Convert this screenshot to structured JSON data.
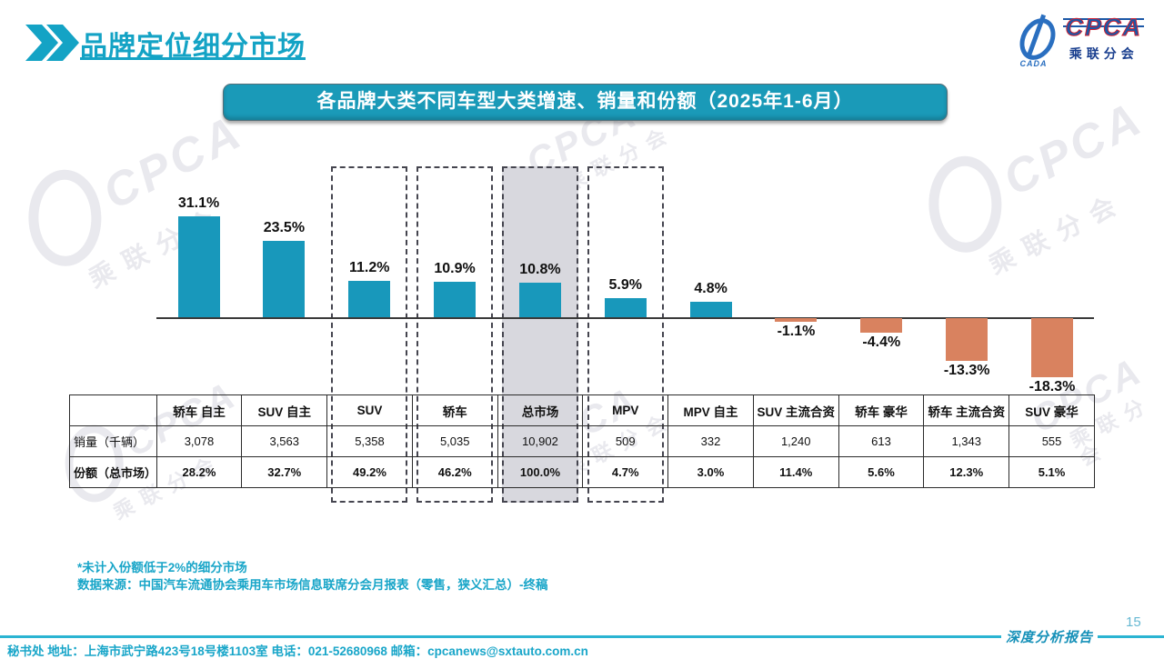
{
  "page": {
    "title": "品牌定位细分市场",
    "page_number": "15",
    "report_label": "深度分析报告",
    "footer_contact": "秘书处  地址：上海市武宁路423号18号楼1103室 电话：021-52680968   邮箱：cpcanews@sxtauto.com.cn"
  },
  "logo": {
    "cpca": "CPCA",
    "zh": "乘联分会",
    "cada": "CADA"
  },
  "banner": {
    "title": "各品牌大类不同车型大类增速、销量和份额（2025年1-6月）"
  },
  "notes": {
    "line1": "*未计入份额低于2%的细分市场",
    "line2": "数据来源：中国汽车流通协会乘用车市场信息联席分会月报表（零售，狭义汇总）-终稿"
  },
  "watermark": {
    "text": "CPCA",
    "sub": "乘联分会"
  },
  "chart_data": {
    "type": "bar",
    "title": "各品牌大类不同车型大类增速、销量和份额（2025年1-6月）",
    "categories": [
      "轿车 自主",
      "SUV 自主",
      "SUV",
      "轿车",
      "总市场",
      "MPV",
      "MPV 自主",
      "SUV 主流合资",
      "轿车 豪华",
      "轿车 主流合资",
      "SUV 豪华"
    ],
    "growth_pct": [
      31.1,
      23.5,
      11.2,
      10.9,
      10.8,
      5.9,
      4.8,
      -1.1,
      -4.4,
      -13.3,
      -18.3
    ],
    "row_labels": [
      "销量（千辆）",
      "份额（总市场）"
    ],
    "sales_thousand": [
      "3,078",
      "3,563",
      "5,358",
      "5,035",
      "10,902",
      "509",
      "332",
      "1,240",
      "613",
      "1,343",
      "555"
    ],
    "share_pct": [
      "28.2%",
      "32.7%",
      "49.2%",
      "46.2%",
      "100.0%",
      "4.7%",
      "3.0%",
      "11.4%",
      "5.6%",
      "12.3%",
      "5.1%"
    ],
    "highlight_dashed": [
      "SUV",
      "轿车",
      "总市场",
      "MPV"
    ],
    "highlight_filled": "总市场",
    "legend": "none",
    "grid": false,
    "colors": {
      "positive": "#1898bb",
      "negative": "#d9825f",
      "highlight_fill": "#d8d8de"
    }
  }
}
